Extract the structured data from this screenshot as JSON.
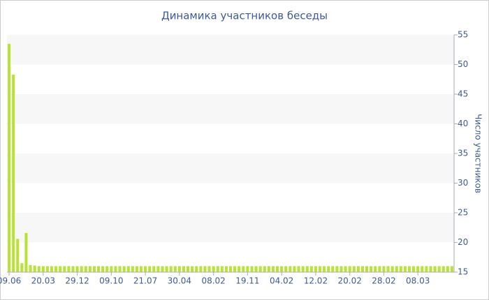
{
  "chart_data": {
    "type": "bar",
    "title": "Динамика участников беседы",
    "y_axis_label": "Число участников",
    "y_axis_side": "right",
    "categories": [
      "09.06",
      null,
      null,
      null,
      null,
      null,
      null,
      null,
      "20.03",
      null,
      null,
      null,
      null,
      null,
      null,
      null,
      "29.12",
      null,
      null,
      null,
      null,
      null,
      null,
      null,
      "09.10",
      null,
      null,
      null,
      null,
      null,
      null,
      null,
      "21.07",
      null,
      null,
      null,
      null,
      null,
      null,
      null,
      "30.04",
      null,
      null,
      null,
      null,
      null,
      null,
      null,
      "08.02",
      null,
      null,
      null,
      null,
      null,
      null,
      null,
      "19.11",
      null,
      null,
      null,
      null,
      null,
      null,
      null,
      "04.02",
      null,
      null,
      null,
      null,
      null,
      null,
      null,
      "12.02",
      null,
      null,
      null,
      null,
      null,
      null,
      null,
      "20.02",
      null,
      null,
      null,
      null,
      null,
      null,
      null,
      "28.02",
      null,
      null,
      null,
      null,
      null,
      null,
      null,
      "08.03",
      null,
      null,
      null,
      null,
      null,
      null,
      null,
      null
    ],
    "values": [
      53.5,
      48.3,
      20.6,
      16.5,
      21.6,
      16.2,
      16.1,
      16,
      16,
      16,
      16,
      16,
      16,
      16,
      16,
      16,
      16,
      16,
      16,
      16,
      16,
      16,
      16,
      16,
      16,
      16,
      16,
      16,
      16,
      16,
      16,
      16,
      16,
      16,
      16,
      16,
      16,
      16,
      16,
      16,
      16,
      16,
      16,
      16,
      16,
      16,
      16,
      16,
      16,
      16,
      16,
      16,
      16,
      16,
      16,
      16,
      16,
      16,
      16,
      16,
      16,
      16,
      16,
      16,
      16,
      16,
      16,
      16,
      16,
      16,
      16,
      16,
      16,
      16,
      16,
      16,
      16,
      16,
      16,
      16,
      16,
      16,
      16,
      16,
      16,
      16,
      16,
      16,
      16,
      16,
      16,
      16,
      16,
      16,
      16,
      16,
      16,
      16,
      16,
      16,
      16,
      16,
      16,
      16,
      16
    ],
    "color": "#b8e234",
    "ylim": [
      15,
      55
    ],
    "yticks": [
      15,
      20,
      25,
      30,
      35,
      40,
      45,
      50,
      55
    ],
    "grid": "alternating-bands",
    "band_color": "#f7f7f7"
  }
}
